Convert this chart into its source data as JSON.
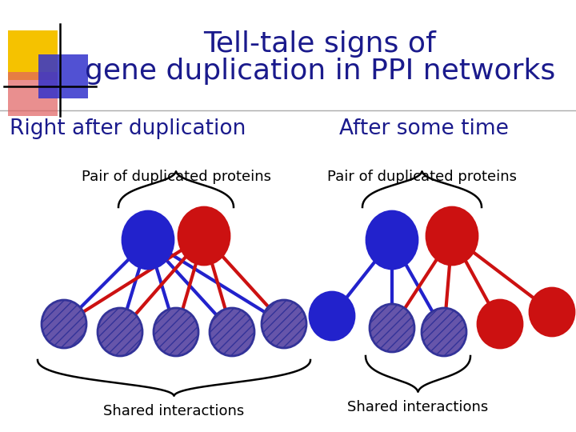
{
  "title_line1": "Tell-tale signs of",
  "title_line2": "gene duplication in PPI networks",
  "title_color": "#1a1a8c",
  "title_fontsize": 26,
  "subtitle_left": "Right after duplication",
  "subtitle_right": "After some time",
  "subtitle_color": "#1a1a8c",
  "subtitle_fontsize": 19,
  "label_pair": "Pair of duplicated proteins",
  "label_shared": "Shared interactions",
  "label_fontsize": 13,
  "bg_color": "#ffffff",
  "node_blue_color": "#2222cc",
  "node_red_color": "#cc1111",
  "node_hatched_color": "#6655aa",
  "node_hatched_edge": "#333399",
  "line_blue": "#2222cc",
  "line_red": "#cc1111",
  "logo_yellow": "#f5c200",
  "logo_pink": "#e06060",
  "logo_blue": "#3333cc"
}
